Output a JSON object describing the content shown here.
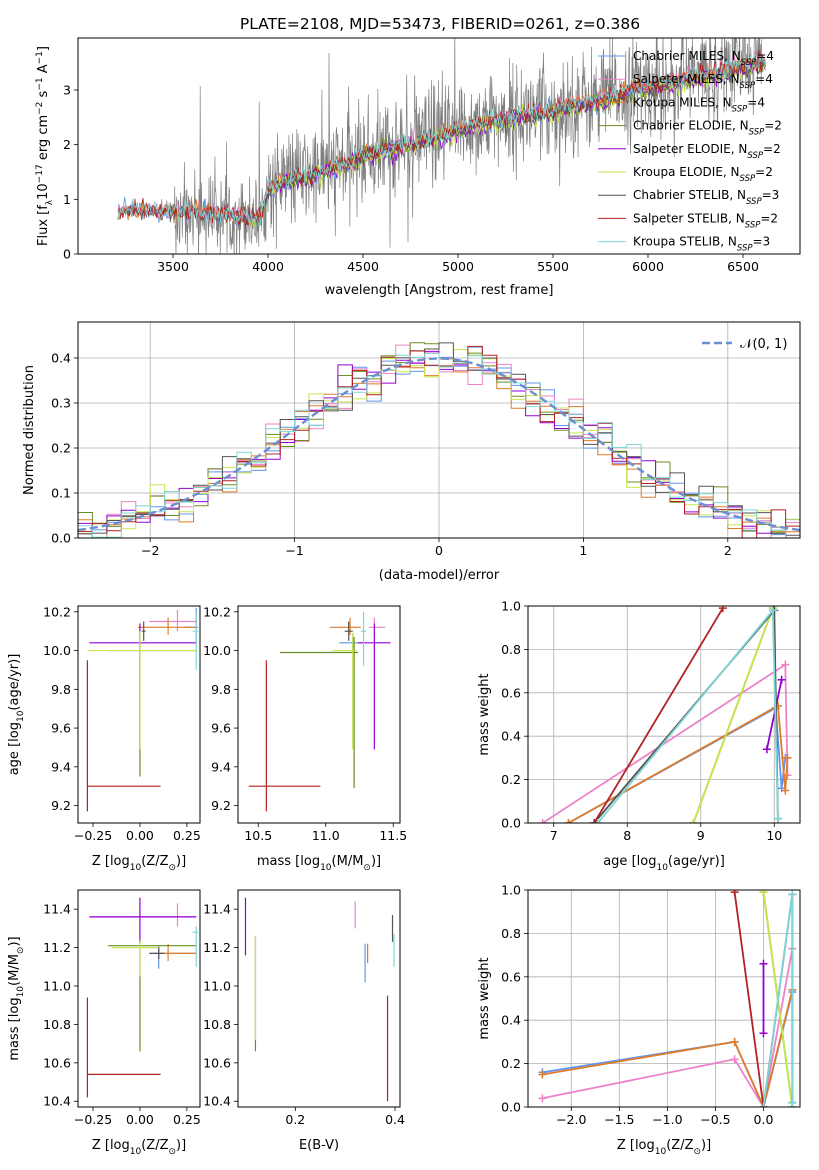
{
  "figure_title": "PLATE=2108, MJD=53473, FIBERID=0261, z=0.386",
  "colors": {
    "Chabrier MILES": "#6495ed",
    "Salpeter MILES": "#ee82c8",
    "Kroupa MILES": "#e07b2a",
    "Chabrier ELODIE": "#6b8e23",
    "Salpeter ELODIE": "#9400d3",
    "Kroupa ELODIE": "#c8e650",
    "Chabrier STELIB": "#555555",
    "Salpeter STELIB": "#b22222",
    "Kroupa STELIB": "#7fd6d6",
    "gauss": "#6a8fd4"
  },
  "chart_data": [
    {
      "id": "spectrum",
      "type": "line",
      "title": "PLATE=2108, MJD=53473, FIBERID=0261, z=0.386",
      "xlabel": "wavelength [Angstrom, rest frame]",
      "ylabel": "Flux [f_λ 10^-17 erg cm^-2 s^-1 A^-1]",
      "xlim": [
        3000,
        6800
      ],
      "ylim": [
        0,
        3.95
      ],
      "xticks": [
        3500,
        4000,
        4500,
        5000,
        5500,
        6000,
        6500
      ],
      "yticks": [
        0,
        1,
        2,
        3
      ],
      "grid": false,
      "legend_position": "top-right",
      "legend": [
        {
          "main": "Chabrier MILES, N",
          "sub": "SSP",
          "tail": "=4"
        },
        {
          "main": "Salpeter MILES, N",
          "sub": "SSP",
          "tail": "=4"
        },
        {
          "main": "Kroupa MILES, N",
          "sub": "SSP",
          "tail": "=4"
        },
        {
          "main": "Chabrier ELODIE, N",
          "sub": "SSP",
          "tail": "=2"
        },
        {
          "main": "Salpeter ELODIE, N",
          "sub": "SSP",
          "tail": "=2"
        },
        {
          "main": "Kroupa ELODIE, N",
          "sub": "SSP",
          "tail": "=2"
        },
        {
          "main": "Chabrier STELIB, N",
          "sub": "SSP",
          "tail": "=3"
        },
        {
          "main": "Salpeter STELIB, N",
          "sub": "SSP",
          "tail": "=2"
        },
        {
          "main": "Kroupa STELIB, N",
          "sub": "SSP",
          "tail": "=3"
        }
      ],
      "continuum": {
        "x": [
          3210,
          3300,
          3400,
          3500,
          3600,
          3700,
          3800,
          3900,
          3960,
          4000,
          4100,
          4200,
          4300,
          4400,
          4500,
          4600,
          4700,
          4800,
          4900,
          5000,
          5100,
          5200,
          5300,
          5400,
          5500,
          5600,
          5700,
          5800,
          5900,
          6000,
          6100,
          6200,
          6300,
          6400,
          6500,
          6600
        ],
        "y": [
          0.78,
          0.82,
          0.8,
          0.78,
          0.8,
          0.74,
          0.72,
          0.7,
          0.62,
          1.2,
          1.38,
          1.42,
          1.55,
          1.65,
          1.8,
          1.92,
          2.0,
          2.08,
          2.18,
          2.28,
          2.4,
          2.48,
          2.52,
          2.58,
          2.66,
          2.75,
          2.82,
          2.92,
          3.0,
          3.08,
          3.15,
          3.25,
          3.3,
          3.38,
          3.48,
          3.55
        ]
      }
    },
    {
      "id": "residuals",
      "type": "line",
      "xlabel": "(data-model)/error",
      "ylabel": "Normed distribution",
      "xlim": [
        -2.5,
        2.5
      ],
      "ylim": [
        0,
        0.48
      ],
      "xticks": [
        -2,
        -1,
        0,
        1,
        2
      ],
      "yticks": [
        0.0,
        0.1,
        0.2,
        0.3,
        0.4
      ],
      "grid": true,
      "legend_position": "top-right",
      "legend_label": "𝒩(0, 1)",
      "gauss_mu": 0,
      "gauss_sigma": 1
    },
    {
      "id": "age_z",
      "type": "scatter",
      "xlabel": "Z [log10(Z/Z⊙)]",
      "ylabel": "age [log10(age/yr)]",
      "xlim": [
        -0.33,
        0.32
      ],
      "ylim": [
        9.11,
        10.23
      ],
      "xticks": [
        -0.25,
        0.0,
        0.25
      ],
      "yticks": [
        9.2,
        9.4,
        9.6,
        9.8,
        10.0,
        10.2
      ],
      "grid": false,
      "points": [
        {
          "m": "Chabrier MILES",
          "x": 0.3,
          "xe": [
            0.06,
            0.01
          ],
          "y": 10.12,
          "ye": [
            0.08,
            0.1
          ]
        },
        {
          "m": "Salpeter MILES",
          "x": 0.2,
          "xe": [
            0.15,
            0.1
          ],
          "y": 10.15,
          "ye": [
            0.05,
            0.06
          ]
        },
        {
          "m": "Kroupa MILES",
          "x": 0.15,
          "xe": [
            0.16,
            0.15
          ],
          "y": 10.12,
          "ye": [
            0.04,
            0.05
          ]
        },
        {
          "m": "Chabrier ELODIE",
          "x": 0.0,
          "xe": [
            0.17,
            0.3
          ],
          "y": 10.0,
          "ye": [
            0.65,
            0.1
          ]
        },
        {
          "m": "Salpeter ELODIE",
          "x": 0.0,
          "xe": [
            0.27,
            0.3
          ],
          "y": 10.04,
          "ye": [
            0.55,
            0.1
          ]
        },
        {
          "m": "Kroupa ELODIE",
          "x": 0.0,
          "xe": [
            0.28,
            0.3
          ],
          "y": 10.0,
          "ye": [
            0.51,
            0.1
          ]
        },
        {
          "m": "Chabrier STELIB",
          "x": 0.02,
          "xe": [
            0.01,
            0.01
          ],
          "y": 10.1,
          "ye": [
            0.05,
            0.05
          ]
        },
        {
          "m": "Salpeter STELIB",
          "x": -0.28,
          "xe": [
            0.0,
            0.39
          ],
          "y": 9.3,
          "ye": [
            0.13,
            0.65
          ]
        },
        {
          "m": "Kroupa STELIB",
          "x": 0.3,
          "xe": [
            0.02,
            0.01
          ],
          "y": 10.1,
          "ye": [
            0.2,
            0.1
          ]
        }
      ]
    },
    {
      "id": "age_mass",
      "type": "scatter",
      "xlabel": "mass [log10(M/M⊙)]",
      "ylabel": "",
      "xlim": [
        10.35,
        11.55
      ],
      "ylim": [
        9.11,
        10.23
      ],
      "xticks": [
        10.5,
        11.0,
        11.5
      ],
      "yticks": [
        9.2,
        9.4,
        9.6,
        9.8,
        10.0,
        10.2
      ],
      "grid": false,
      "points": [
        {
          "m": "Chabrier MILES",
          "x": 11.2,
          "xe": [
            0.1,
            0.08
          ],
          "y": 10.04,
          "ye": [
            0.05,
            0.05
          ]
        },
        {
          "m": "Salpeter MILES",
          "x": 11.36,
          "xe": [
            0.04,
            0.08
          ],
          "y": 10.12,
          "ye": [
            0.05,
            0.05
          ]
        },
        {
          "m": "Kroupa MILES",
          "x": 11.18,
          "xe": [
            0.15,
            0.08
          ],
          "y": 10.12,
          "ye": [
            0.04,
            0.05
          ]
        },
        {
          "m": "Chabrier ELODIE",
          "x": 11.21,
          "xe": [
            0.55,
            0.03
          ],
          "y": 9.99,
          "ye": [
            0.7,
            0.08
          ]
        },
        {
          "m": "Salpeter ELODIE",
          "x": 11.36,
          "xe": [
            0.12,
            0.12
          ],
          "y": 10.04,
          "ye": [
            0.55,
            0.1
          ]
        },
        {
          "m": "Kroupa ELODIE",
          "x": 11.2,
          "xe": [
            0.15,
            0.03
          ],
          "y": 10.0,
          "ye": [
            0.51,
            0.09
          ]
        },
        {
          "m": "Chabrier STELIB",
          "x": 11.17,
          "xe": [
            0.03,
            0.03
          ],
          "y": 10.1,
          "ye": [
            0.05,
            0.05
          ]
        },
        {
          "m": "Salpeter STELIB",
          "x": 10.56,
          "xe": [
            0.13,
            0.4
          ],
          "y": 9.3,
          "ye": [
            0.13,
            0.65
          ]
        },
        {
          "m": "Kroupa STELIB",
          "x": 11.28,
          "xe": [
            0.02,
            0.02
          ],
          "y": 10.1,
          "ye": [
            0.18,
            0.1
          ]
        }
      ]
    },
    {
      "id": "weight_age",
      "type": "line",
      "xlabel": "age [log10(age/yr)]",
      "ylabel": "mass weight",
      "xlim": [
        6.65,
        10.35
      ],
      "ylim": [
        0,
        1.0
      ],
      "xticks": [
        7,
        8,
        9,
        10
      ],
      "yticks": [
        0.0,
        0.2,
        0.4,
        0.6,
        0.8,
        1.0
      ],
      "grid": true,
      "series": [
        {
          "m": "Chabrier MILES",
          "x": [
            7.2,
            10.02,
            10.1,
            10.15
          ],
          "y": [
            0.0,
            0.53,
            0.16,
            0.3
          ]
        },
        {
          "m": "Salpeter MILES",
          "x": [
            6.85,
            10.15,
            10.18
          ],
          "y": [
            0.0,
            0.73,
            0.22
          ]
        },
        {
          "m": "Kroupa MILES",
          "x": [
            7.2,
            10.05,
            10.15,
            10.18
          ],
          "y": [
            0.0,
            0.54,
            0.15,
            0.3
          ]
        },
        {
          "m": "Chabrier ELODIE",
          "x": [
            8.9,
            9.98
          ],
          "y": [
            0.0,
            0.99
          ]
        },
        {
          "m": "Salpeter ELODIE",
          "x": [
            9.9,
            10.1
          ],
          "y": [
            0.34,
            0.66
          ]
        },
        {
          "m": "Kroupa ELODIE",
          "x": [
            8.9,
            9.98
          ],
          "y": [
            0.0,
            0.99
          ]
        },
        {
          "m": "Chabrier STELIB",
          "x": [
            7.55,
            10.0,
            10.05
          ],
          "y": [
            0.0,
            0.98,
            0.02
          ]
        },
        {
          "m": "Salpeter STELIB",
          "x": [
            7.55,
            9.3
          ],
          "y": [
            0.0,
            0.99
          ]
        },
        {
          "m": "Kroupa STELIB",
          "x": [
            7.6,
            9.98,
            10.05
          ],
          "y": [
            0.0,
            0.98,
            0.02
          ]
        }
      ]
    },
    {
      "id": "mass_z",
      "type": "scatter",
      "xlabel": "Z [log10(Z/Z⊙)]",
      "ylabel": "mass [log10(M/M⊙)]",
      "xlim": [
        -0.33,
        0.32
      ],
      "ylim": [
        10.37,
        11.5
      ],
      "xticks": [
        -0.25,
        0.0,
        0.25
      ],
      "yticks": [
        10.4,
        10.6,
        10.8,
        11.0,
        11.2,
        11.4
      ],
      "grid": false,
      "points": [
        {
          "m": "Chabrier MILES",
          "x": 0.1,
          "xe": [
            0.05,
            0.2
          ],
          "y": 11.17,
          "ye": [
            0.08,
            0.04
          ]
        },
        {
          "m": "Salpeter MILES",
          "x": 0.2,
          "xe": [
            0.45,
            0.1
          ],
          "y": 11.36,
          "ye": [
            0.05,
            0.07
          ]
        },
        {
          "m": "Kroupa MILES",
          "x": 0.15,
          "xe": [
            0.05,
            0.15
          ],
          "y": 11.17,
          "ye": [
            0.04,
            0.05
          ]
        },
        {
          "m": "Chabrier ELODIE",
          "x": 0.0,
          "xe": [
            0.17,
            0.3
          ],
          "y": 11.21,
          "ye": [
            0.55,
            0.03
          ]
        },
        {
          "m": "Salpeter ELODIE",
          "x": 0.0,
          "xe": [
            0.27,
            0.3
          ],
          "y": 11.36,
          "ye": [
            0.12,
            0.1
          ]
        },
        {
          "m": "Kroupa ELODIE",
          "x": 0.0,
          "xe": [
            0.15,
            0.1
          ],
          "y": 11.2,
          "ye": [
            0.15,
            0.03
          ]
        },
        {
          "m": "Chabrier STELIB",
          "x": 0.1,
          "xe": [
            0.05,
            0.03
          ],
          "y": 11.17,
          "ye": [
            0.03,
            0.03
          ]
        },
        {
          "m": "Salpeter STELIB",
          "x": -0.28,
          "xe": [
            0.0,
            0.39
          ],
          "y": 10.54,
          "ye": [
            0.12,
            0.4
          ]
        },
        {
          "m": "Kroupa STELIB",
          "x": 0.3,
          "xe": [
            0.02,
            0.01
          ],
          "y": 11.28,
          "ye": [
            0.18,
            0.03
          ]
        }
      ]
    },
    {
      "id": "mass_ebv",
      "type": "scatter",
      "xlabel": "E(B-V)",
      "ylabel": "",
      "xlim": [
        0.085,
        0.41
      ],
      "ylim": [
        10.37,
        11.5
      ],
      "xticks": [
        0.2,
        0.4
      ],
      "yticks": [
        10.4,
        10.6,
        10.8,
        11.0,
        11.2,
        11.4
      ],
      "grid": false,
      "points": [
        {
          "m": "Chabrier MILES",
          "x": 0.34,
          "ye": [
            0.15,
            0.05
          ],
          "y": 11.17
        },
        {
          "m": "Salpeter MILES",
          "x": 0.32,
          "ye": [
            0.06,
            0.08
          ],
          "y": 11.36
        },
        {
          "m": "Kroupa MILES",
          "x": 0.345,
          "ye": [
            0.05,
            0.05
          ],
          "y": 11.17
        },
        {
          "m": "Chabrier ELODIE",
          "x": 0.12,
          "ye": [
            0.55,
            0.05
          ],
          "y": 11.21
        },
        {
          "m": "Salpeter ELODIE",
          "x": 0.1,
          "ye": [
            0.2,
            0.1
          ],
          "y": 11.36
        },
        {
          "m": "Kroupa ELODIE",
          "x": 0.12,
          "ye": [
            0.48,
            0.06
          ],
          "y": 11.2
        },
        {
          "m": "Chabrier STELIB",
          "x": 0.395,
          "ye": [
            0.05,
            0.09
          ],
          "y": 11.28
        },
        {
          "m": "Salpeter STELIB",
          "x": 0.385,
          "ye": [
            0.15,
            0.4
          ],
          "y": 10.55
        },
        {
          "m": "Kroupa STELIB",
          "x": 0.398,
          "ye": [
            0.1,
            0.07
          ],
          "y": 11.2
        }
      ]
    },
    {
      "id": "weight_z",
      "type": "line",
      "xlabel": "Z [log10(Z/Z⊙)]",
      "ylabel": "mass weight",
      "xlim": [
        -2.45,
        0.38
      ],
      "ylim": [
        0,
        1.0
      ],
      "xticks": [
        -2.0,
        -1.5,
        -1.0,
        -0.5,
        0.0
      ],
      "yticks": [
        0.0,
        0.2,
        0.4,
        0.6,
        0.8,
        1.0
      ],
      "grid": true,
      "series": [
        {
          "m": "Chabrier MILES",
          "x": [
            -2.3,
            -0.3,
            0.0,
            0.3
          ],
          "y": [
            0.16,
            0.3,
            0.0,
            0.53
          ]
        },
        {
          "m": "Salpeter MILES",
          "x": [
            -2.3,
            -0.3,
            0.0,
            0.3
          ],
          "y": [
            0.04,
            0.22,
            0.0,
            0.73
          ]
        },
        {
          "m": "Kroupa MILES",
          "x": [
            -2.3,
            -0.3,
            0.0,
            0.3
          ],
          "y": [
            0.15,
            0.3,
            0.0,
            0.54
          ]
        },
        {
          "m": "Chabrier ELODIE",
          "x": [
            0.0,
            0.3
          ],
          "y": [
            0.99,
            0.0
          ]
        },
        {
          "m": "Salpeter ELODIE",
          "x": [
            0.0,
            0.0
          ],
          "y": [
            0.34,
            0.66
          ]
        },
        {
          "m": "Kroupa ELODIE",
          "x": [
            0.0,
            0.3
          ],
          "y": [
            0.99,
            0.0
          ]
        },
        {
          "m": "Chabrier STELIB",
          "x": [
            0.0,
            0.3,
            0.3
          ],
          "y": [
            0.0,
            0.98,
            0.02
          ]
        },
        {
          "m": "Salpeter STELIB",
          "x": [
            -0.3,
            0.0
          ],
          "y": [
            0.99,
            0.0
          ]
        },
        {
          "m": "Kroupa STELIB",
          "x": [
            0.0,
            0.3,
            0.3
          ],
          "y": [
            0.0,
            0.98,
            0.02
          ]
        }
      ]
    }
  ]
}
